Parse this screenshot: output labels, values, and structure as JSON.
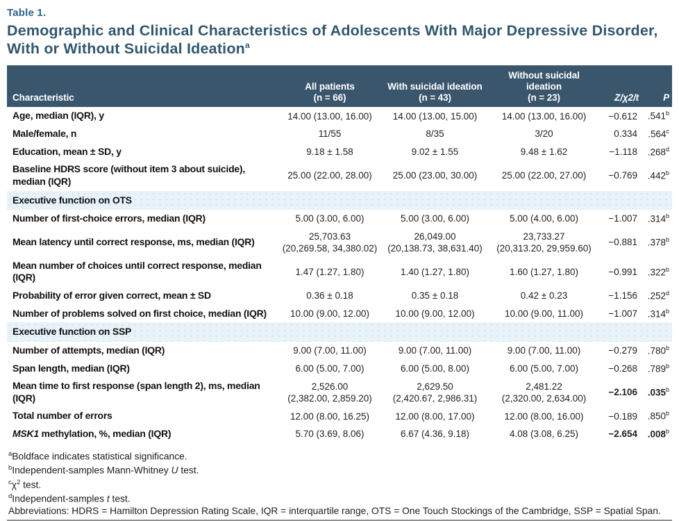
{
  "header": {
    "table_label": "Table 1.",
    "title": "Demographic and Clinical Characteristics of Adolescents With Major Depressive Disorder, With or Without Suicidal Ideation",
    "title_sup": "a"
  },
  "colors": {
    "header_bar_bg": "#3a566c",
    "section_row_bg": "#e7f2fa",
    "title_text": "#31576f",
    "table_label_text": "#2d6389"
  },
  "table": {
    "columns": [
      {
        "label": "Characteristic",
        "align": "al",
        "italic": false
      },
      {
        "label": "All patients\n(n = 66)",
        "align": "ac",
        "italic": false
      },
      {
        "label": "With suicidal ideation\n(n = 43)",
        "align": "ac",
        "italic": false
      },
      {
        "label": "Without suicidal\nideation\n(n = 23)",
        "align": "ac",
        "italic": false
      },
      {
        "label": "Z/χ2/t",
        "align": "ar",
        "italic": true
      },
      {
        "label": "P",
        "align": "ar",
        "italic": true
      }
    ],
    "rows": [
      {
        "type": "data",
        "label": "Age, median (IQR), y",
        "cells": [
          "14.00 (13.00, 16.00)",
          "14.00 (13.00, 15.00)",
          "14.00 (13.00, 16.00)"
        ],
        "z": "−0.612",
        "p": ".541",
        "p_sup": "b",
        "bold_stats": false
      },
      {
        "type": "data",
        "label": "Male/female, n",
        "cells": [
          "11/55",
          "8/35",
          "3/20"
        ],
        "z": "0.334",
        "p": ".564",
        "p_sup": "c",
        "bold_stats": false
      },
      {
        "type": "data",
        "label": "Education, mean ± SD, y",
        "cells": [
          "9.18 ± 1.58",
          "9.02 ± 1.55",
          "9.48 ± 1.62"
        ],
        "z": "−1.118",
        "p": ".268",
        "p_sup": "d",
        "bold_stats": false
      },
      {
        "type": "data",
        "label": "Baseline HDRS score (without item 3 about suicide), median (IQR)",
        "cells": [
          "25.00 (22.00, 28.00)",
          "25.00 (23.00, 30.00)",
          "25.00 (22.00, 27.00)"
        ],
        "z": "−0.769",
        "p": ".442",
        "p_sup": "b",
        "bold_stats": false
      },
      {
        "type": "section",
        "label": "Executive function on OTS"
      },
      {
        "type": "data",
        "label": "Number of first-choice errors, median (IQR)",
        "cells": [
          "5.00 (3.00, 6.00)",
          "5.00 (3.00, 6.00)",
          "5.00 (4.00, 6.00)"
        ],
        "z": "−1.007",
        "p": ".314",
        "p_sup": "b",
        "bold_stats": false
      },
      {
        "type": "data",
        "label": "Mean latency until correct response, ms, median (IQR)",
        "cells": [
          "25,703.63\n(20,269.58, 34,380.02)",
          "26,049.00\n(20,138.73, 38,631.40)",
          "23,733.27\n(20,313.20, 29,959.60)"
        ],
        "z": "−0.881",
        "p": ".378",
        "p_sup": "b",
        "bold_stats": false
      },
      {
        "type": "data",
        "label": "Mean number of choices until correct response, median (IQR)",
        "cells": [
          "1.47 (1.27, 1.80)",
          "1.40 (1.27, 1.80)",
          "1.60 (1.27, 1.80)"
        ],
        "z": "−0.991",
        "p": ".322",
        "p_sup": "b",
        "bold_stats": false
      },
      {
        "type": "data",
        "label": "Probability of error given correct, mean ± SD",
        "cells": [
          "0.36 ± 0.18",
          "0.35 ± 0.18",
          "0.42 ± 0.23"
        ],
        "z": "−1.156",
        "p": ".252",
        "p_sup": "d",
        "bold_stats": false
      },
      {
        "type": "data",
        "label": "Number of problems solved on first choice, median (IQR)",
        "cells": [
          "10.00 (9.00, 12.00)",
          "10.00 (9.00, 12.00)",
          "10.00 (9.00, 11.00)"
        ],
        "z": "−1.007",
        "p": ".314",
        "p_sup": "b",
        "bold_stats": false
      },
      {
        "type": "section",
        "label": "Executive function on SSP"
      },
      {
        "type": "data",
        "label": "Number of attempts, median (IQR)",
        "cells": [
          "9.00 (7.00, 11.00)",
          "9.00 (7.00, 11.00)",
          "9.00 (7.00, 11.00)"
        ],
        "z": "−0.279",
        "p": ".780",
        "p_sup": "b",
        "bold_stats": false
      },
      {
        "type": "data",
        "label": "Span length, median (IQR)",
        "cells": [
          "6.00 (5.00, 7.00)",
          "6.00 (5.00, 8.00)",
          "6.00 (5.00, 7.00)"
        ],
        "z": "−0.268",
        "p": ".789",
        "p_sup": "b",
        "bold_stats": false
      },
      {
        "type": "data",
        "label": "Mean time to first response (span length 2), ms, median (IQR)",
        "cells": [
          "2,526.00\n(2,382.00, 2,859.20)",
          "2,629.50\n(2,420.67, 2,986.31)",
          "2,481.22\n(2,320.00, 2,634.00)"
        ],
        "z": "−2.106",
        "p": ".035",
        "p_sup": "b",
        "bold_stats": true
      },
      {
        "type": "data",
        "label": "Total number of errors",
        "cells": [
          "12.00 (8.00, 16.25)",
          "12.00 (8.00, 17.00)",
          "12.00 (8.00, 16.00)"
        ],
        "z": "−0.189",
        "p": ".850",
        "p_sup": "b",
        "bold_stats": false
      },
      {
        "type": "data",
        "label": "MSK1 methylation, %, median (IQR)",
        "italic_prefix": "MSK1",
        "cells": [
          "5.70 (3.69, 8.06)",
          "6.67 (4.36, 9.18)",
          "4.08 (3.08, 6.25)"
        ],
        "z": "−2.654",
        "p": ".008",
        "p_sup": "b",
        "bold_stats": true
      }
    ]
  },
  "footnotes": [
    {
      "segments": [
        {
          "t": "a",
          "sup": true
        },
        {
          "t": "Boldface indicates statistical significance."
        }
      ]
    },
    {
      "segments": [
        {
          "t": "b",
          "sup": true
        },
        {
          "t": "Independent-samples Mann-Whitney "
        },
        {
          "t": "U",
          "i": true
        },
        {
          "t": " test."
        }
      ]
    },
    {
      "segments": [
        {
          "t": "c",
          "sup": true
        },
        {
          "t": "χ"
        },
        {
          "t": "2",
          "sup": true
        },
        {
          "t": " test."
        }
      ]
    },
    {
      "segments": [
        {
          "t": "d",
          "sup": true
        },
        {
          "t": "Independent-samples "
        },
        {
          "t": "t",
          "i": true
        },
        {
          "t": " test."
        }
      ]
    },
    {
      "segments": [
        {
          "t": "Abbreviations: HDRS = Hamilton Depression Rating Scale, IQR = interquartile range, OTS = One Touch Stockings of the Cambridge, SSP = Spatial Span."
        }
      ],
      "wrap": true
    }
  ]
}
